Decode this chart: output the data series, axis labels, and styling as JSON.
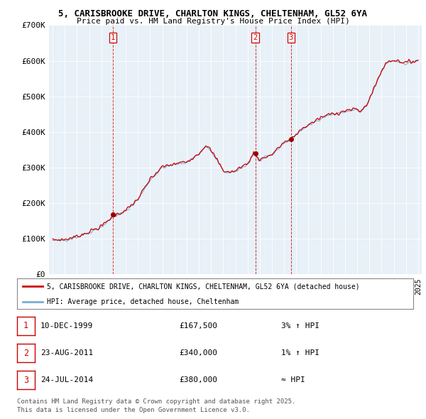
{
  "title_line1": "5, CARISBROOKE DRIVE, CHARLTON KINGS, CHELTENHAM, GL52 6YA",
  "title_line2": "Price paid vs. HM Land Registry's House Price Index (HPI)",
  "bg_color": "#ffffff",
  "plot_bg_color": "#e8f0f8",
  "grid_color": "#ffffff",
  "hpi_color": "#7bafd4",
  "price_color": "#cc0000",
  "dot_color": "#990000",
  "legend_label_price": "5, CARISBROOKE DRIVE, CHARLTON KINGS, CHELTENHAM, GL52 6YA (detached house)",
  "legend_label_hpi": "HPI: Average price, detached house, Cheltenham",
  "sales": [
    {
      "num": 1,
      "date": "10-DEC-1999",
      "price": 167500,
      "year": 1999.95,
      "relation": "3% ↑ HPI"
    },
    {
      "num": 2,
      "date": "23-AUG-2011",
      "price": 340000,
      "year": 2011.64,
      "relation": "1% ↑ HPI"
    },
    {
      "num": 3,
      "date": "24-JUL-2014",
      "price": 380000,
      "year": 2014.56,
      "relation": "≈ HPI"
    }
  ],
  "footer_line1": "Contains HM Land Registry data © Crown copyright and database right 2025.",
  "footer_line2": "This data is licensed under the Open Government Licence v3.0.",
  "ylim": [
    0,
    700000
  ],
  "yticks": [
    0,
    100000,
    200000,
    300000,
    400000,
    500000,
    600000,
    700000
  ],
  "ytick_labels": [
    "£0",
    "£100K",
    "£200K",
    "£300K",
    "£400K",
    "£500K",
    "£600K",
    "£700K"
  ],
  "xlim_left": 1994.7,
  "xlim_right": 2025.3
}
